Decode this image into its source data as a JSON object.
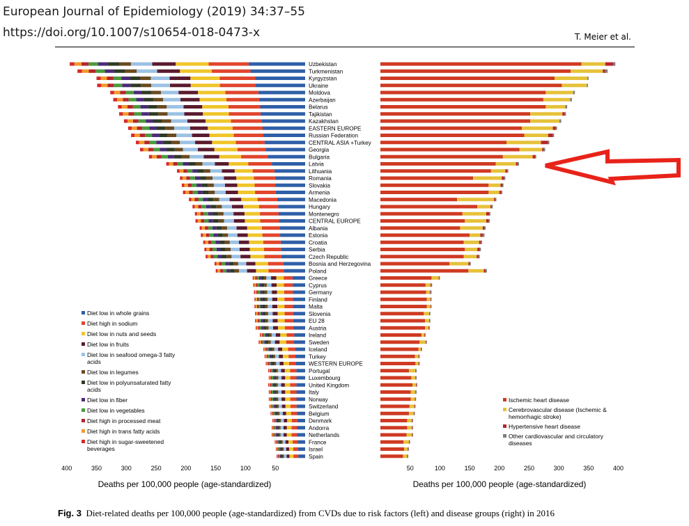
{
  "header": {
    "journal": "European Journal of Epidemiology (2019) 34:37–55",
    "doi": "https://doi.org/10.1007/s10654-018-0473-x",
    "author": "T. Meier et al."
  },
  "caption": {
    "label": "Fig. 3",
    "text": "Diet-related deaths per 100,000 people (age-standardized) from CVDs due to risk factors (left) and disease groups (right) in 2016"
  },
  "colors": {
    "arrow": "#e8231a"
  },
  "chart_data": [
    {
      "type": "bar",
      "orientation": "horizontal-stacked",
      "axis_direction": "reversed",
      "xlabel": "Deaths per 100,000 people (age-standardized)",
      "xlim": [
        0,
        400
      ],
      "ticks": [
        "400",
        "350",
        "300",
        "250",
        "200",
        "150",
        "100",
        "50"
      ],
      "legend_position": "lower-left",
      "categories": [
        "Uzbekistan",
        "Turkmenistan",
        "Kyrgyzstan",
        "Ukraine",
        "Moldova",
        "Azerbaijan",
        "Belarus",
        "Tajikistan",
        "Kazakhstan",
        "EASTERN EUROPE",
        "Russian Federation",
        "CENTRAL ASIA +Turkey",
        "Georgia",
        "Bulgaria",
        "Latvia",
        "Lithuania",
        "Romania",
        "Slovakia",
        "Armenia",
        "Macedonia",
        "Hungary",
        "Montenegro",
        "CENTRAL EUROPE",
        "Albania",
        "Estonia",
        "Croatia",
        "Serbia",
        "Czech Republic",
        "Bosnia and Herzegovina",
        "Poland",
        "Greece",
        "Cyprus",
        "Germany",
        "Finland",
        "Malta",
        "Slovenia",
        "EU 28",
        "Austria",
        "Ireland",
        "Sweden",
        "Iceland",
        "Turkey",
        "WESTERN EUROPE",
        "Portugal",
        "Luxembourg",
        "United Kingdom",
        "Italy",
        "Norway",
        "Switzerland",
        "Belgium",
        "Denmark",
        "Andorra",
        "Netherlands",
        "France",
        "Israel",
        "Spain"
      ],
      "totals": [
        395,
        382,
        350,
        349,
        327,
        322,
        314,
        312,
        304,
        297,
        292,
        284,
        277,
        262,
        233,
        215,
        210,
        207,
        205,
        195,
        189,
        185,
        184,
        177,
        175,
        171,
        169,
        167,
        152,
        150,
        88,
        87,
        86,
        85,
        85,
        84,
        84,
        83,
        76,
        78,
        70,
        68,
        66,
        62,
        61,
        62,
        61,
        61,
        60,
        58,
        55,
        56,
        56,
        51,
        49,
        48
      ],
      "series": [
        {
          "name": "Diet low in whole grains",
          "color": "#2f5fa8",
          "share": 0.24
        },
        {
          "name": "Diet high in sodium",
          "color": "#e1452c",
          "share": 0.17
        },
        {
          "name": "Diet low in nuts and seeds",
          "color": "#f0c52a",
          "share": 0.14
        },
        {
          "name": "Diet low in fruits",
          "color": "#5a1a2e",
          "share": 0.1
        },
        {
          "name": "Diet low in seafood omega-3 fatty acids",
          "color": "#9cc2e4",
          "share": 0.09
        },
        {
          "name": "Diet low in legumes",
          "color": "#6b4a1e",
          "share": 0.05
        },
        {
          "name": "Diet low in polyunsaturated fatty acids",
          "color": "#2e3a24",
          "share": 0.05
        },
        {
          "name": "Diet low in fiber",
          "color": "#4b2a7a",
          "share": 0.04
        },
        {
          "name": "Diet low in vegetables",
          "color": "#4a9a3c",
          "share": 0.04
        },
        {
          "name": "Diet high in processed meat",
          "color": "#b3262c",
          "share": 0.03
        },
        {
          "name": "Diet high in trans fatty acids",
          "color": "#f29a2a",
          "share": 0.03
        },
        {
          "name": "Diet high in sugar-sweetened beverages",
          "color": "#d72a2a",
          "share": 0.02
        }
      ]
    },
    {
      "type": "bar",
      "orientation": "horizontal-stacked",
      "xlabel": "Deaths per 100,000 people (age-standardized)",
      "xlim": [
        0,
        400
      ],
      "ticks": [
        "50",
        "100",
        "150",
        "200",
        "250",
        "300",
        "350",
        "400"
      ],
      "legend_position": "lower-right",
      "categories": [
        "Uzbekistan",
        "Turkmenistan",
        "Kyrgyzstan",
        "Ukraine",
        "Moldova",
        "Azerbaijan",
        "Belarus",
        "Tajikistan",
        "Kazakhstan",
        "EASTERN EUROPE",
        "Russian Federation",
        "CENTRAL ASIA +Turkey",
        "Georgia",
        "Bulgaria",
        "Latvia",
        "Lithuania",
        "Romania",
        "Slovakia",
        "Armenia",
        "Macedonia",
        "Hungary",
        "Montenegro",
        "CENTRAL EUROPE",
        "Albania",
        "Estonia",
        "Croatia",
        "Serbia",
        "Czech Republic",
        "Bosnia and Herzegovina",
        "Poland",
        "Greece",
        "Cyprus",
        "Germany",
        "Finland",
        "Malta",
        "Slovenia",
        "EU 28",
        "Austria",
        "Ireland",
        "Sweden",
        "Iceland",
        "Turkey",
        "WESTERN EUROPE",
        "Portugal",
        "Luxembourg",
        "United Kingdom",
        "Italy",
        "Norway",
        "Switzerland",
        "Belgium",
        "Denmark",
        "Andorra",
        "Netherlands",
        "France",
        "Israel",
        "Spain"
      ],
      "series": [
        {
          "name": "Ischemic heart disease",
          "color": "#cf3a22",
          "values": [
            338,
            320,
            293,
            305,
            278,
            274,
            278,
            252,
            252,
            238,
            242,
            212,
            234,
            206,
            194,
            186,
            156,
            182,
            182,
            129,
            163,
            138,
            142,
            134,
            150,
            140,
            142,
            140,
            116,
            148,
            86,
            76,
            77,
            78,
            78,
            73,
            75,
            75,
            69,
            66,
            64,
            58,
            59,
            48,
            52,
            54,
            51,
            51,
            49,
            48,
            45,
            45,
            44,
            39,
            40,
            38
          ]
        },
        {
          "name": "Cerebrovascular disease (Ischemic & hemorrhagic stroke)",
          "color": "#e6c23a",
          "values": [
            40,
            54,
            55,
            42,
            46,
            45,
            33,
            54,
            49,
            52,
            40,
            58,
            38,
            50,
            34,
            24,
            48,
            20,
            18,
            62,
            22,
            40,
            36,
            38,
            18,
            26,
            21,
            22,
            32,
            26,
            12,
            8,
            6,
            6,
            6,
            9,
            7,
            6,
            5,
            10,
            4,
            6,
            5,
            11,
            7,
            6,
            8,
            7,
            8,
            8,
            8,
            8,
            9,
            9,
            6,
            7
          ]
        },
        {
          "name": "Hypertensive heart disease",
          "color": "#b8252c",
          "values": [
            14,
            4,
            0,
            0,
            0,
            0,
            0,
            4,
            0,
            5,
            8,
            12,
            3,
            4,
            3,
            3,
            4,
            3,
            3,
            2,
            2,
            5,
            4,
            3,
            4,
            3,
            4,
            3,
            2,
            3,
            1,
            1,
            1,
            1,
            1,
            1,
            1,
            1,
            1,
            1,
            1,
            1,
            1,
            1,
            1,
            1,
            1,
            1,
            1,
            1,
            1,
            1,
            1,
            1,
            1,
            1
          ]
        },
        {
          "name": "Other cardiovascular and circulatory diseases",
          "color": "#7e7e7e",
          "values": [
            3,
            4,
            2,
            2,
            3,
            3,
            3,
            2,
            3,
            2,
            2,
            2,
            2,
            2,
            2,
            2,
            2,
            2,
            2,
            2,
            2,
            2,
            2,
            2,
            3,
            2,
            2,
            2,
            2,
            2,
            1,
            2,
            2,
            1,
            1,
            1,
            1,
            1,
            1,
            1,
            1,
            1,
            1,
            1,
            1,
            1,
            1,
            1,
            1,
            1,
            1,
            1,
            1,
            1,
            1,
            1
          ]
        }
      ]
    }
  ]
}
